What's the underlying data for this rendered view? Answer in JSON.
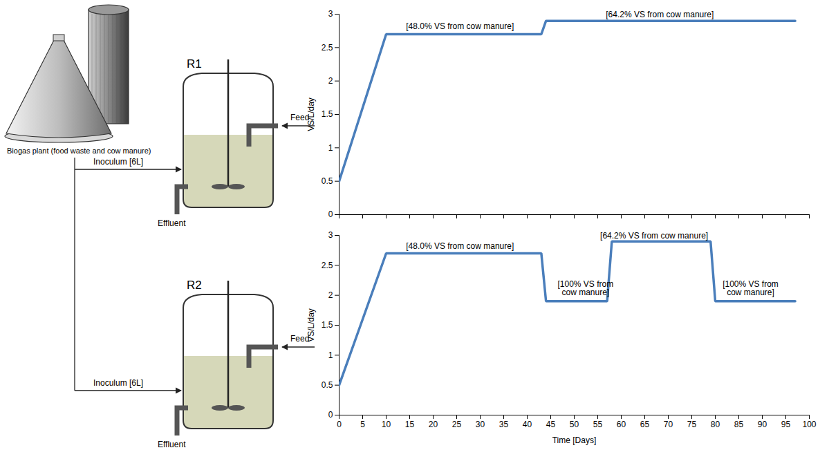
{
  "diagram": {
    "plant": "Biogas plant (food waste and cow manure)",
    "reactors": [
      {
        "label": "R1",
        "inoculum": "Inoculum [6L]",
        "feed": "Feed",
        "effluent": "Effluent"
      },
      {
        "label": "R2",
        "inoculum": "Inoculum [6L]",
        "feed": "Feed",
        "effluent": "Effluent"
      }
    ]
  },
  "chart_data": [
    {
      "type": "line",
      "ylabel": "VS/L/day",
      "x": [
        0,
        10,
        43,
        44,
        97
      ],
      "values": [
        0.5,
        2.7,
        2.7,
        2.9,
        2.9
      ],
      "color": "#4a7ebb",
      "xlim": [
        0,
        100
      ],
      "xticks": [
        0,
        5,
        10,
        15,
        20,
        25,
        30,
        35,
        40,
        45,
        50,
        55,
        60,
        65,
        70,
        75,
        80,
        85,
        90,
        95,
        100
      ],
      "ylim": [
        0,
        3
      ],
      "yticks": [
        0,
        0.5,
        1,
        1.5,
        2,
        2.5,
        3
      ],
      "grid": false,
      "tick_labels": "y",
      "annotations": [
        {
          "text": "[48.0% VS from cow manure]",
          "x": 25.7,
          "y": 2.78
        },
        {
          "text": "[64.2% VS from cow manure]",
          "x": 68.2,
          "y": 2.95
        }
      ]
    },
    {
      "type": "line",
      "xlabel": "Time [Days]",
      "ylabel": "VS/L/day",
      "x": [
        0,
        10,
        43,
        44,
        57,
        58,
        79,
        80,
        97
      ],
      "values": [
        0.5,
        2.7,
        2.7,
        1.9,
        1.9,
        2.9,
        2.9,
        1.9,
        1.9
      ],
      "color": "#4a7ebb",
      "xlim": [
        0,
        100
      ],
      "xticks": [
        0,
        5,
        10,
        15,
        20,
        25,
        30,
        35,
        40,
        45,
        50,
        55,
        60,
        65,
        70,
        75,
        80,
        85,
        90,
        95,
        100
      ],
      "ylim": [
        0,
        3
      ],
      "yticks": [
        0,
        0.5,
        1,
        1.5,
        2,
        2.5,
        3
      ],
      "grid": false,
      "annotations": [
        {
          "text": "[48.0% VS from cow manure]",
          "x": 25.7,
          "y": 2.78
        },
        {
          "text": "[100% VS from cow manure]",
          "x": 52.4,
          "y": 2.0
        },
        {
          "text": "[64.2% VS from cow manure]",
          "x": 67,
          "y": 2.95
        },
        {
          "text": "[100% VS from cow manure]",
          "x": 87.5,
          "y": 2.0
        }
      ]
    }
  ]
}
